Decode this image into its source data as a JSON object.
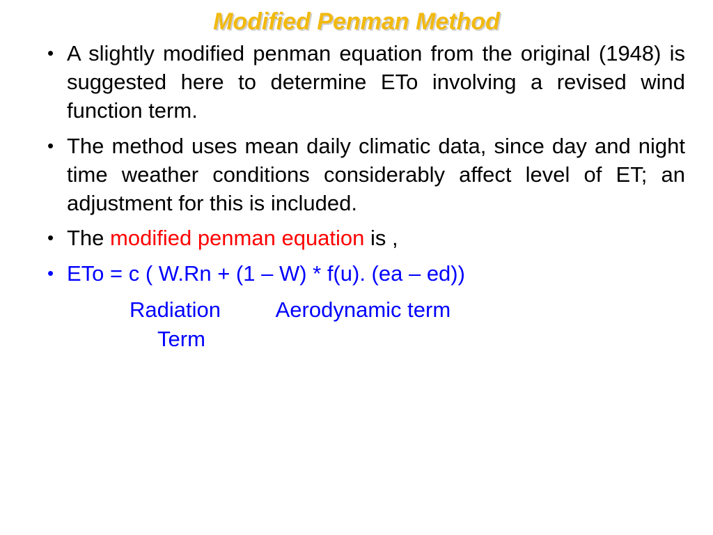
{
  "title": {
    "text": "Modified Penman Method",
    "color": "#f2b90f",
    "shadow_color": "#d0d0d0"
  },
  "bullets": [
    {
      "bullet_color": "black",
      "spans": [
        {
          "text": "A slightly modified penman equation from the original (1948) is suggested here to determine ETo involving a revised wind function term.",
          "color": "black"
        }
      ]
    },
    {
      "bullet_color": "black",
      "spans": [
        {
          "text": "The method uses mean daily climatic data, since day and night time weather conditions considerably affect level of ET; an adjustment for this is included.",
          "color": "black"
        }
      ]
    },
    {
      "bullet_color": "black",
      "spans": [
        {
          "text": "The ",
          "color": "black"
        },
        {
          "text": "modified penman equation",
          "color": "red"
        },
        {
          "text": " is ,",
          "color": "black"
        }
      ]
    },
    {
      "bullet_color": "blue",
      "spans": [
        {
          "text": "ETo = c ( W.Rn + (1 – W) * f(u). (ea – ed))",
          "color": "blue"
        }
      ]
    }
  ],
  "terms": {
    "row1_left": "Radiation",
    "row1_right": "Aerodynamic term",
    "row2": "Term",
    "color": "blue"
  },
  "colors": {
    "black": "#000000",
    "red": "#ff0000",
    "blue": "#0000ff"
  }
}
